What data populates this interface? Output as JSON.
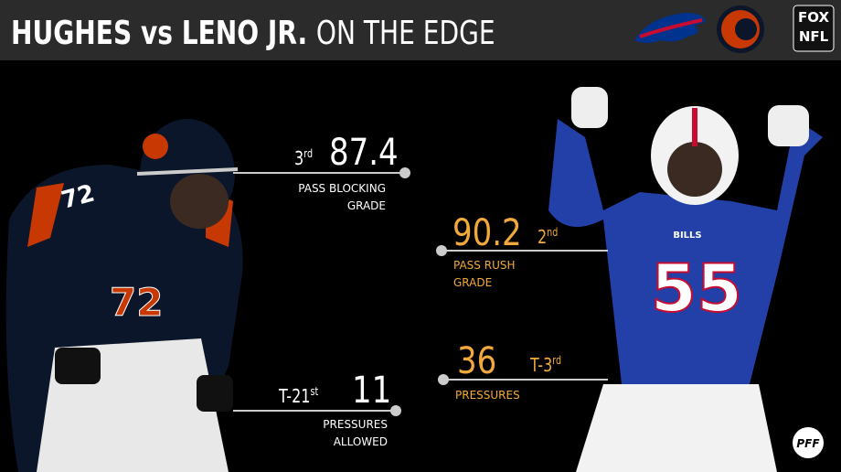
{
  "header": {
    "title_bold": "HUGHES vs LENO JR.",
    "title_light": "ON THE EDGE",
    "network_top": "FOX",
    "network_bottom": "NFL"
  },
  "players": [
    {
      "jersey": "72",
      "stats": [
        {
          "rank": "3",
          "rank_suffix": "rd",
          "value": "87.4",
          "label_lines": [
            "PASS BLOCKING",
            "GRADE"
          ]
        },
        {
          "rank": "T-21",
          "rank_suffix": "st",
          "value": "11",
          "label_lines": [
            "PRESSURES",
            "ALLOWED"
          ]
        }
      ]
    },
    {
      "jersey": "55",
      "jersey_team": "BILLS",
      "stats": [
        {
          "rank": "2",
          "rank_suffix": "nd",
          "value": "90.2",
          "label_lines": [
            "PASS RUSH",
            "GRADE"
          ]
        },
        {
          "rank": "T-3",
          "rank_suffix": "rd",
          "value": "36",
          "label_lines": [
            "PRESSURES"
          ]
        }
      ]
    }
  ],
  "footer": {
    "brand": "PFF"
  }
}
